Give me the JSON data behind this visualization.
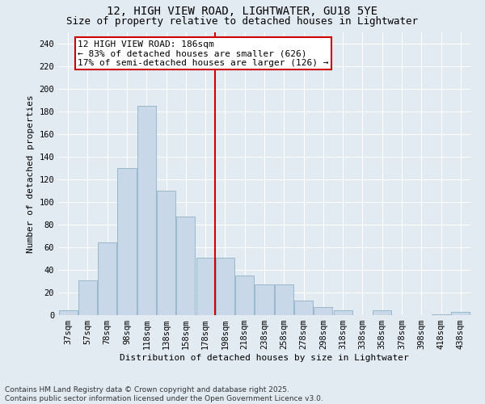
{
  "title": "12, HIGH VIEW ROAD, LIGHTWATER, GU18 5YE",
  "subtitle": "Size of property relative to detached houses in Lightwater",
  "xlabel": "Distribution of detached houses by size in Lightwater",
  "ylabel": "Number of detached properties",
  "bar_color": "#c8d8e8",
  "bar_edge_color": "#99b8cc",
  "background_color": "#e2eaf2",
  "grid_color": "#ffffff",
  "categories": [
    "37sqm",
    "57sqm",
    "78sqm",
    "98sqm",
    "118sqm",
    "138sqm",
    "158sqm",
    "178sqm",
    "198sqm",
    "218sqm",
    "238sqm",
    "258sqm",
    "278sqm",
    "298sqm",
    "318sqm",
    "338sqm",
    "358sqm",
    "378sqm",
    "398sqm",
    "418sqm",
    "438sqm"
  ],
  "values": [
    4,
    31,
    64,
    130,
    185,
    110,
    87,
    51,
    51,
    35,
    27,
    27,
    13,
    7,
    4,
    0,
    4,
    0,
    0,
    1,
    3
  ],
  "ylim": [
    0,
    250
  ],
  "yticks": [
    0,
    20,
    40,
    60,
    80,
    100,
    120,
    140,
    160,
    180,
    200,
    220,
    240
  ],
  "vline_x_idx": 7.5,
  "vline_color": "#cc0000",
  "annotation_text": "12 HIGH VIEW ROAD: 186sqm\n← 83% of detached houses are smaller (626)\n17% of semi-detached houses are larger (126) →",
  "annotation_box_color": "#ffffff",
  "annotation_box_edge_color": "#cc0000",
  "footer_text": "Contains HM Land Registry data © Crown copyright and database right 2025.\nContains public sector information licensed under the Open Government Licence v3.0.",
  "title_fontsize": 10,
  "subtitle_fontsize": 9,
  "axis_label_fontsize": 8,
  "tick_fontsize": 7.5,
  "annotation_fontsize": 8,
  "footer_fontsize": 6.5
}
